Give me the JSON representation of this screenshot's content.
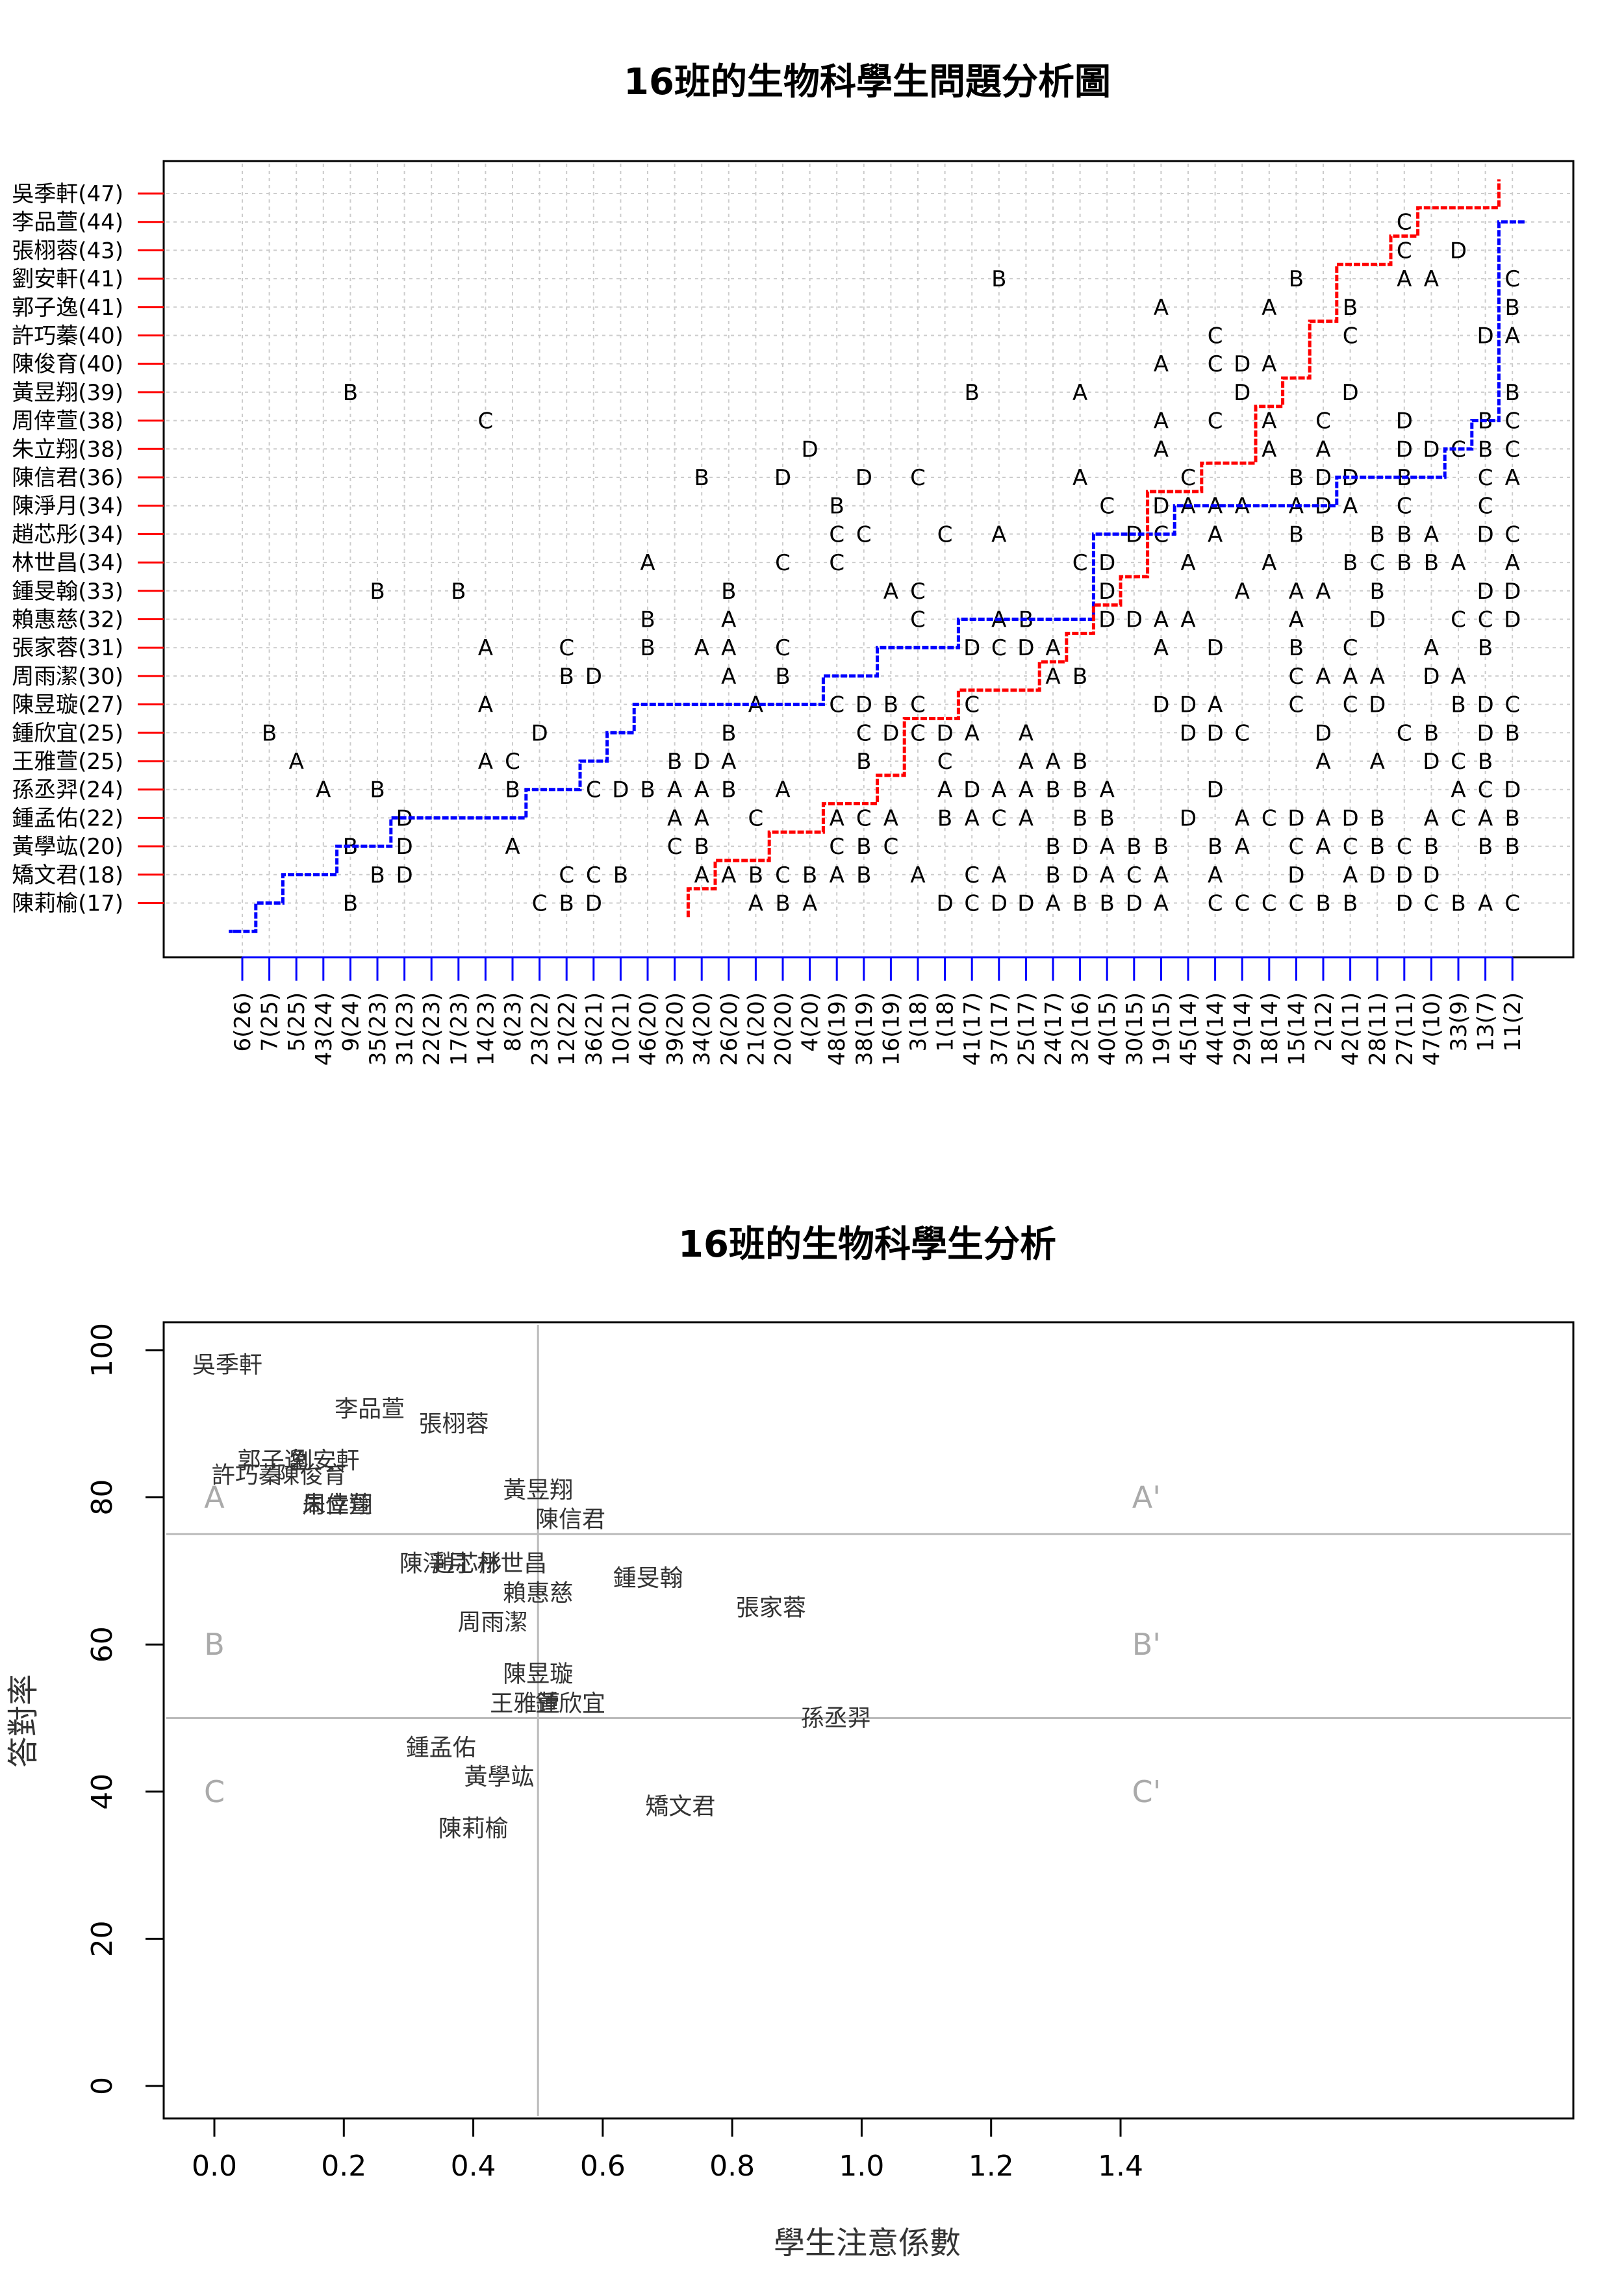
{
  "top_chart": {
    "title": "16班的生物科學生問題分析圖",
    "students": [
      {
        "label": "吳季軒(47)"
      },
      {
        "label": "李品萱(44)"
      },
      {
        "label": "張栩蓉(43)"
      },
      {
        "label": "劉安軒(41)"
      },
      {
        "label": "郭子逸(41)"
      },
      {
        "label": "許巧蓁(40)"
      },
      {
        "label": "陳俊育(40)"
      },
      {
        "label": "黃昱翔(39)"
      },
      {
        "label": "周倖萱(38)"
      },
      {
        "label": "朱立翔(38)"
      },
      {
        "label": "陳信君(36)"
      },
      {
        "label": "陳淨月(34)"
      },
      {
        "label": "趙芯彤(34)"
      },
      {
        "label": "林世昌(34)"
      },
      {
        "label": "鍾旻翰(33)"
      },
      {
        "label": "賴惠慈(32)"
      },
      {
        "label": "張家蓉(31)"
      },
      {
        "label": "周雨潔(30)"
      },
      {
        "label": "陳昱璇(27)"
      },
      {
        "label": "鍾欣宜(25)"
      },
      {
        "label": "王雅萱(25)"
      },
      {
        "label": "孫丞羿(24)"
      },
      {
        "label": "鍾孟佑(22)"
      },
      {
        "label": "黃學竑(20)"
      },
      {
        "label": "矯文君(18)"
      },
      {
        "label": "陳莉榆(17)"
      }
    ],
    "questions": [
      "6(26)",
      "7(25)",
      "5(25)",
      "43(24)",
      "9(24)",
      "35(23)",
      "31(23)",
      "22(23)",
      "17(23)",
      "14(23)",
      "8(23)",
      "23(22)",
      "12(22)",
      "36(21)",
      "10(21)",
      "46(20)",
      "39(20)",
      "34(20)",
      "26(20)",
      "21(20)",
      "20(20)",
      "4(20)",
      "48(19)",
      "38(19)",
      "16(19)",
      "3(18)",
      "1(18)",
      "41(17)",
      "37(17)",
      "25(17)",
      "24(17)",
      "32(16)",
      "40(15)",
      "30(15)",
      "19(15)",
      "45(14)",
      "44(14)",
      "29(14)",
      "18(14)",
      "15(14)",
      "2(12)",
      "42(11)",
      "28(11)",
      "27(11)",
      "47(10)",
      "33(9)",
      "13(7)",
      "11(2)"
    ],
    "row_answers": [
      "                                                     C ",
      "                                           C       C  CA",
      "                                           C D  D   A  C ",
      "                            B          B   AA  CCA",
      "                                  A   A  B     BDCD",
      "                                    C    C    DADCCA",
      "                                  A CDA          BCCA",
      "    B                      B   A     D   D     BCCA",
      "         C                        A C A C  D  BCCA",
      "                     D            A   A A  DDCBCA",
      "                 B  D  D C     A   C   BDD B  CA",
      "                      B         C DAAA ADA C  C  CA",
      "                      CC  C A    DC A  B  BBA DC A",
      "               A    C C        CD  A  A  BCBBA AD",
      "     B  B         B     AC      D    A AA B   DD B CD",
      "               B  A      C  AB  DDAA   A  D  CCDAB",
      "         A  C  B AA C      DCDA   A D  B C  A B A",
      "            BD    A B         AB       CAAA DA  DDABCA",
      "         A         A  CDBC C      DDA  C CD  BDCDDC  CA",
      " B         D      B    CDCDA A     DDC  D  CB DBACBDCA",
      "  A      AC     BDA    B  C  AAB        A A DCB DDADB AD",
      "   A B    B  CDBAAB A     ADAABBA   D        ACDD A   D",
      "      D         AA C  ACA BACA BB  D ACDADB ACABCDB  D",
      "    B D   A     CB    CBC     BDABB BA CACBCB BB ABCAD",
      "     BD     CCB  AABCBAB A CA BDACA A  D ADDD   CDCD",
      "    B      CBD     ABA    DCDDABBDA CCCCBB DCBACBDAB"
    ],
    "colors": {
      "above": "#ff0000",
      "below": "#0000ff",
      "grid": "#cccccc"
    }
  },
  "bottom_chart": {
    "title": "16班的生物科學生分析",
    "xlabel": "學生注意係數",
    "ylabel": "答對率",
    "x_ticks": [
      "0.0",
      "0.2",
      "0.4",
      "0.6",
      "0.8",
      "1.0",
      "1.2",
      "1.4"
    ],
    "y_ticks": [
      "0",
      "20",
      "40",
      "60",
      "80",
      "100"
    ],
    "zones_left": [
      "A",
      "B",
      "C"
    ],
    "zones_right": [
      "A'",
      "B'",
      "C'"
    ]
  },
  "chart_data": [
    {
      "type": "table",
      "title": "16班的生物科學生問題分析圖",
      "rows": "top_chart.students",
      "columns": "top_chart.questions"
    },
    {
      "type": "scatter",
      "title": "16班的生物科學生分析",
      "xlabel": "學生注意係數",
      "ylabel": "答對率",
      "xlim": [
        -0.06,
        1.5
      ],
      "ylim": [
        -4,
        104
      ],
      "reference_lines": {
        "x": [
          0.5
        ],
        "y": [
          50,
          75
        ]
      },
      "points": [
        {
          "name": "吳季軒",
          "x": 0.02,
          "y": 98
        },
        {
          "name": "李品萱",
          "x": 0.24,
          "y": 92
        },
        {
          "name": "張栩蓉",
          "x": 0.37,
          "y": 90
        },
        {
          "name": "郭子逸",
          "x": 0.09,
          "y": 85
        },
        {
          "name": "劉安軒",
          "x": 0.17,
          "y": 85
        },
        {
          "name": "許巧蓁",
          "x": 0.05,
          "y": 83
        },
        {
          "name": "陳俊育",
          "x": 0.15,
          "y": 83
        },
        {
          "name": "黃昱翔",
          "x": 0.5,
          "y": 81
        },
        {
          "name": "周倖萱",
          "x": 0.19,
          "y": 79
        },
        {
          "name": "朱立翔",
          "x": 0.19,
          "y": 79
        },
        {
          "name": "陳信君",
          "x": 0.55,
          "y": 77
        },
        {
          "name": "陳淨月",
          "x": 0.34,
          "y": 71
        },
        {
          "name": "趙芯彤",
          "x": 0.39,
          "y": 71
        },
        {
          "name": "林世昌",
          "x": 0.46,
          "y": 71
        },
        {
          "name": "鍾旻翰",
          "x": 0.67,
          "y": 69
        },
        {
          "name": "賴惠慈",
          "x": 0.5,
          "y": 67
        },
        {
          "name": "張家蓉",
          "x": 0.86,
          "y": 65
        },
        {
          "name": "周雨潔",
          "x": 0.43,
          "y": 63
        },
        {
          "name": "陳昱璇",
          "x": 0.5,
          "y": 56
        },
        {
          "name": "王雅萱",
          "x": 0.48,
          "y": 52
        },
        {
          "name": "鍾欣宜",
          "x": 0.55,
          "y": 52
        },
        {
          "name": "孫丞羿",
          "x": 0.96,
          "y": 50
        },
        {
          "name": "鍾孟佑",
          "x": 0.35,
          "y": 46
        },
        {
          "name": "黃學竑",
          "x": 0.44,
          "y": 42
        },
        {
          "name": "矯文君",
          "x": 0.72,
          "y": 38
        },
        {
          "name": "陳莉榆",
          "x": 0.4,
          "y": 35
        }
      ]
    }
  ]
}
